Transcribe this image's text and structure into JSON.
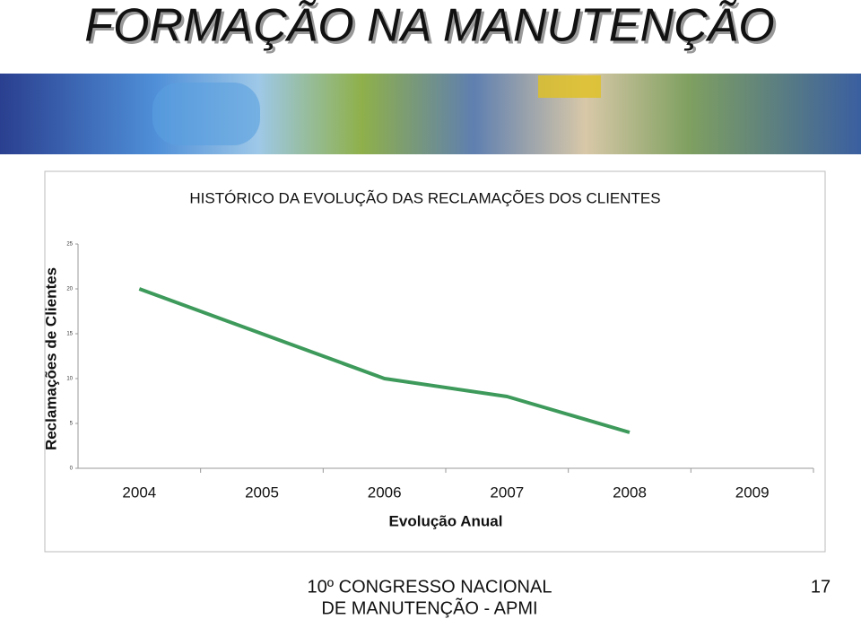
{
  "header": {
    "title": "FORMAÇÃO NA MANUTENÇÃO"
  },
  "chart_data": {
    "type": "line",
    "title": "HISTÓRICO DA EVOLUÇÃO DAS RECLAMAÇÕES DOS CLIENTES",
    "y_label": "Reclamações de Clientes",
    "x_label": "Evolução Anual",
    "categories": [
      "2004",
      "2005",
      "2006",
      "2007",
      "2008",
      "2009"
    ],
    "series": [
      {
        "name": "Reclamações de Clientes",
        "color": "#3d9a5b",
        "values": [
          20,
          15,
          10,
          8,
          4,
          null
        ]
      }
    ],
    "ylim": [
      0,
      25
    ],
    "yticks": [
      0,
      5,
      10,
      15,
      20,
      25
    ],
    "grid": false
  },
  "footer": {
    "line1": "10º CONGRESSO NACIONAL",
    "line2": "DE MANUTENÇÃO - APMI",
    "page": "17"
  }
}
